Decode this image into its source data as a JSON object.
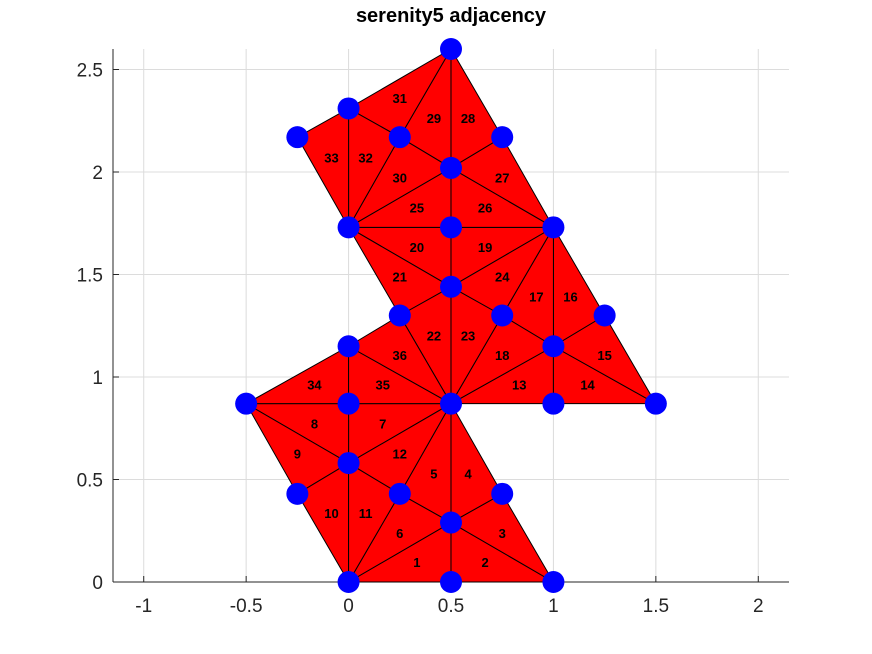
{
  "chart_data": {
    "type": "scatter",
    "title": "serenity5 adjacency",
    "xlabel": "",
    "ylabel": "",
    "xlim": [
      -1.15,
      2.15
    ],
    "ylim": [
      0,
      2.6
    ],
    "grid": true,
    "x_ticks": [
      -1,
      -0.5,
      0,
      0.5,
      1,
      1.5,
      2
    ],
    "x_tick_labels": [
      "-1",
      "-0.5",
      "0",
      "0.5",
      "1",
      "1.5",
      "2"
    ],
    "y_ticks": [
      0,
      0.5,
      1,
      1.5,
      2,
      2.5
    ],
    "y_tick_labels": [
      "0",
      "0.5",
      "1",
      "1.5",
      "2",
      "2.5"
    ],
    "face_color": "#ff0000",
    "edge_color": "#000000",
    "node_color": "#0000ff",
    "nodes": [
      {
        "x": 0,
        "y": 0
      },
      {
        "x": 0.5,
        "y": 0
      },
      {
        "x": 1,
        "y": 0
      },
      {
        "x": 0.5,
        "y": 0.29
      },
      {
        "x": 0.25,
        "y": 0.43
      },
      {
        "x": 0.75,
        "y": 0.43
      },
      {
        "x": -0.25,
        "y": 0.43
      },
      {
        "x": 0,
        "y": 0.58
      },
      {
        "x": -0.5,
        "y": 0.87
      },
      {
        "x": 0,
        "y": 0.87
      },
      {
        "x": 0.5,
        "y": 0.87
      },
      {
        "x": 1,
        "y": 0.87
      },
      {
        "x": 1.5,
        "y": 0.87
      },
      {
        "x": 0,
        "y": 1.15
      },
      {
        "x": 1,
        "y": 1.15
      },
      {
        "x": 0.25,
        "y": 1.3
      },
      {
        "x": 0.75,
        "y": 1.3
      },
      {
        "x": 1.25,
        "y": 1.3
      },
      {
        "x": 0.5,
        "y": 1.44
      },
      {
        "x": 0,
        "y": 1.73
      },
      {
        "x": 0.5,
        "y": 1.73
      },
      {
        "x": 1,
        "y": 1.73
      },
      {
        "x": 0.5,
        "y": 2.02
      },
      {
        "x": -0.25,
        "y": 2.17
      },
      {
        "x": 0.25,
        "y": 2.17
      },
      {
        "x": 0.75,
        "y": 2.17
      },
      {
        "x": 0,
        "y": 2.31
      },
      {
        "x": 0.5,
        "y": 2.6
      }
    ],
    "triangles": [
      {
        "label": "1",
        "v": [
          0,
          1,
          3
        ]
      },
      {
        "label": "2",
        "v": [
          1,
          2,
          3
        ]
      },
      {
        "label": "3",
        "v": [
          2,
          5,
          3
        ]
      },
      {
        "label": "4",
        "v": [
          5,
          10,
          3
        ]
      },
      {
        "label": "5",
        "v": [
          10,
          4,
          3
        ]
      },
      {
        "label": "6",
        "v": [
          4,
          0,
          3
        ]
      },
      {
        "label": "7",
        "v": [
          9,
          10,
          7
        ]
      },
      {
        "label": "8",
        "v": [
          8,
          9,
          7
        ]
      },
      {
        "label": "9",
        "v": [
          8,
          7,
          6
        ]
      },
      {
        "label": "10",
        "v": [
          6,
          7,
          0
        ]
      },
      {
        "label": "11",
        "v": [
          7,
          4,
          0
        ]
      },
      {
        "label": "12",
        "v": [
          7,
          10,
          4
        ]
      },
      {
        "label": "13",
        "v": [
          10,
          11,
          14
        ]
      },
      {
        "label": "14",
        "v": [
          11,
          12,
          14
        ]
      },
      {
        "label": "15",
        "v": [
          12,
          17,
          14
        ]
      },
      {
        "label": "16",
        "v": [
          17,
          21,
          14
        ]
      },
      {
        "label": "17",
        "v": [
          21,
          16,
          14
        ]
      },
      {
        "label": "18",
        "v": [
          16,
          10,
          14
        ]
      },
      {
        "label": "19",
        "v": [
          20,
          21,
          18
        ]
      },
      {
        "label": "20",
        "v": [
          19,
          20,
          18
        ]
      },
      {
        "label": "21",
        "v": [
          19,
          18,
          15
        ]
      },
      {
        "label": "22",
        "v": [
          15,
          18,
          10
        ]
      },
      {
        "label": "23",
        "v": [
          18,
          16,
          10
        ]
      },
      {
        "label": "24",
        "v": [
          18,
          21,
          16
        ]
      },
      {
        "label": "25",
        "v": [
          19,
          20,
          22
        ]
      },
      {
        "label": "26",
        "v": [
          20,
          21,
          22
        ]
      },
      {
        "label": "27",
        "v": [
          21,
          25,
          22
        ]
      },
      {
        "label": "28",
        "v": [
          25,
          27,
          22
        ]
      },
      {
        "label": "29",
        "v": [
          27,
          24,
          22
        ]
      },
      {
        "label": "30",
        "v": [
          24,
          19,
          22
        ]
      },
      {
        "label": "31",
        "v": [
          26,
          27,
          24
        ]
      },
      {
        "label": "32",
        "v": [
          26,
          24,
          19
        ]
      },
      {
        "label": "33",
        "v": [
          23,
          26,
          19
        ]
      },
      {
        "label": "34",
        "v": [
          8,
          13,
          9
        ]
      },
      {
        "label": "35",
        "v": [
          13,
          10,
          9
        ]
      },
      {
        "label": "36",
        "v": [
          13,
          15,
          10
        ]
      }
    ]
  }
}
